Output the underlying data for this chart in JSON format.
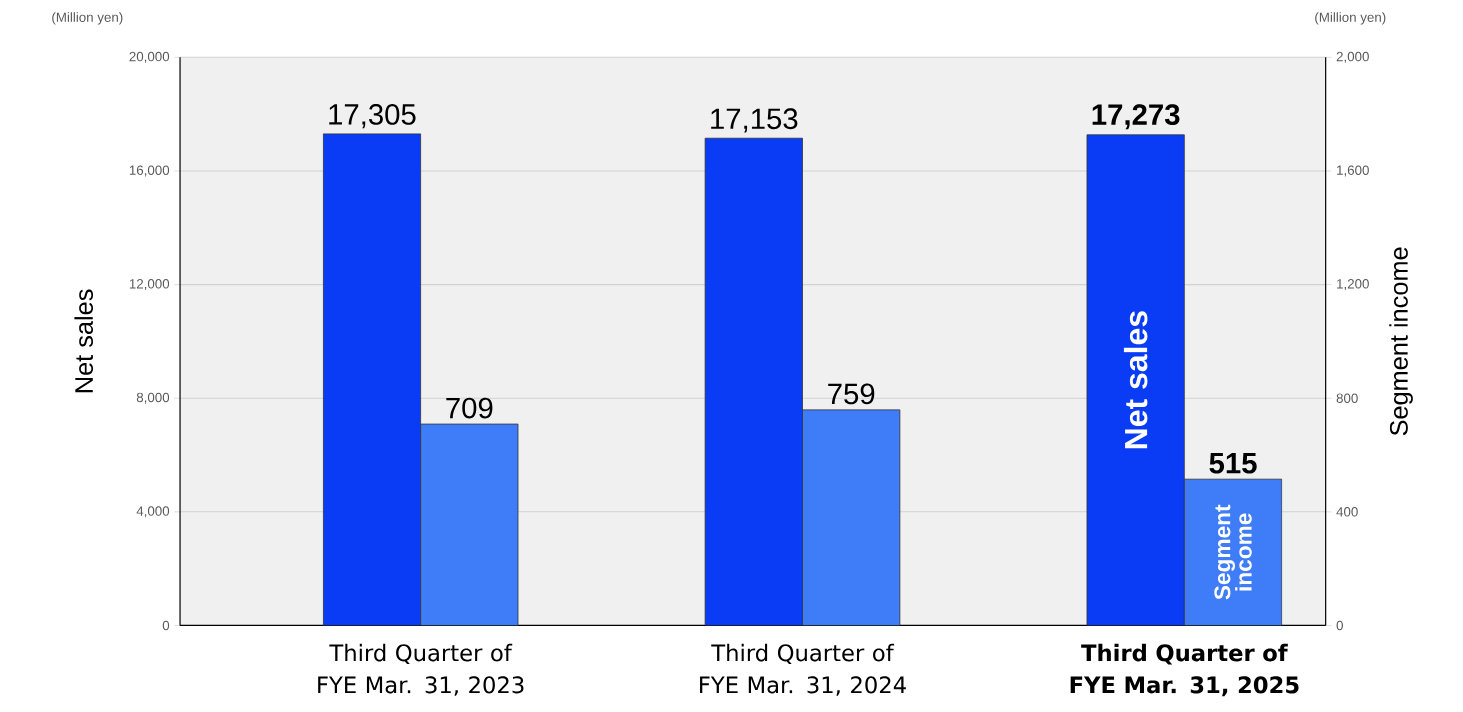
{
  "chart_data": {
    "type": "bar",
    "categories": [
      "Third Quarter of FYE Mar. 31, 2023",
      "Third Quarter of FYE Mar. 31, 2024",
      "Third Quarter of FYE Mar. 31, 2025"
    ],
    "series": [
      {
        "name": "Net sales",
        "color": "#0a3cf5",
        "values": [
          17305,
          17153,
          17273
        ],
        "value_labels": [
          "17,305",
          "17,153",
          "17,273"
        ]
      },
      {
        "name": "Segment income",
        "color": "#3f7cf8",
        "values": [
          709,
          759,
          515
        ],
        "value_labels": [
          "709",
          "759",
          "515"
        ],
        "axis": "y2"
      }
    ],
    "ylabel": "Net sales",
    "y2label": "Segment income",
    "ylim": [
      0,
      20000
    ],
    "yticks": [
      0,
      {
        "value": 4000,
        "label": "4,000"
      },
      {
        "value": 8000,
        "label": "8,000"
      },
      {
        "value": 12000,
        "label": "12,000"
      },
      {
        "value": 16000,
        "label": "16,000"
      },
      {
        "value": 20000,
        "label": "20,000"
      }
    ],
    "y2lim": [
      0,
      2000
    ],
    "y2ticks": [
      0,
      400,
      800,
      {
        "value": 1200,
        "label": "1,200"
      },
      {
        "value": 1600,
        "label": "1,600"
      },
      {
        "value": 2000,
        "label": "2,000"
      }
    ],
    "grid": "y",
    "annotations": [
      "(Million yen)",
      "(Million yen)"
    ]
  }
}
